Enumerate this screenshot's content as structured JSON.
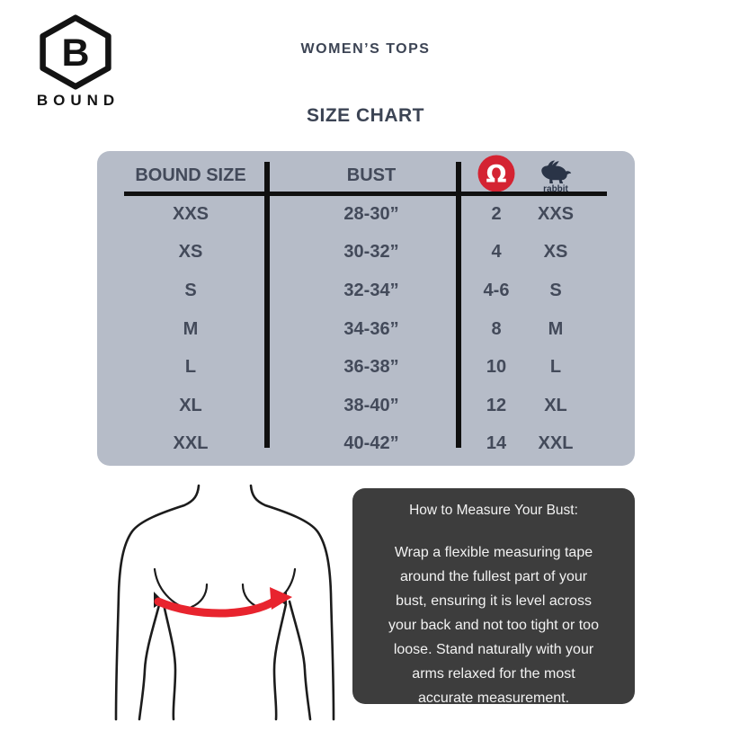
{
  "brand": {
    "name": "BOUND",
    "logo_letter": "B"
  },
  "header": {
    "title": "WOMEN’S TOPS",
    "subtitle": "SIZE CHART"
  },
  "chart_data": {
    "type": "table",
    "title": "WOMEN’S TOPS SIZE CHART",
    "columns": [
      "BOUND SIZE",
      "BUST",
      "lululemon",
      "rabbit"
    ],
    "rows": [
      [
        "XXS",
        "28-30”",
        "2",
        "XXS"
      ],
      [
        "XS",
        "30-32”",
        "4",
        "XS"
      ],
      [
        "S",
        "32-34”",
        "4-6",
        "S"
      ],
      [
        "M",
        "34-36”",
        "8",
        "M"
      ],
      [
        "L",
        "36-38”",
        "10",
        "L"
      ],
      [
        "XL",
        "38-40”",
        "12",
        "XL"
      ],
      [
        "XXL",
        "40-42”",
        "14",
        "XXL"
      ]
    ]
  },
  "table": {
    "lululemon_glyph": "Ω",
    "rabbit_wordmark": "rabbit"
  },
  "icons": {
    "brand": "bound-hexagon-b-logo",
    "col3": "lululemon-logo",
    "col4": "rabbit-logo",
    "illustration": "bust-measurement-figure"
  },
  "measure_box": {
    "title": "How to Measure Your Bust:",
    "body": "Wrap a flexible measuring tape around the fullest part of your bust, ensuring it is level across your back and not too tight or too loose. Stand naturally with your arms relaxed for the most accurate measurement.",
    "body_lines": [
      "Wrap a flexible measuring tape",
      "around the fullest part of your",
      "bust, ensuring it is level across",
      "your back and not too tight or too",
      "loose. Stand naturally with your",
      "arms relaxed for the most",
      "accurate measurement."
    ]
  },
  "colors": {
    "page_bg": "#ffffff",
    "title_text": "#3c4454",
    "table_bg": "#b6bcc8",
    "table_text": "#434a5a",
    "line_black": "#101010",
    "lululemon_red": "#d42332",
    "rabbit_navy": "#2a3447",
    "tape_red": "#e8242e",
    "box_bg": "#3d3d3d",
    "box_text": "#f2f2f2",
    "figure_line": "#1c1c1c"
  }
}
